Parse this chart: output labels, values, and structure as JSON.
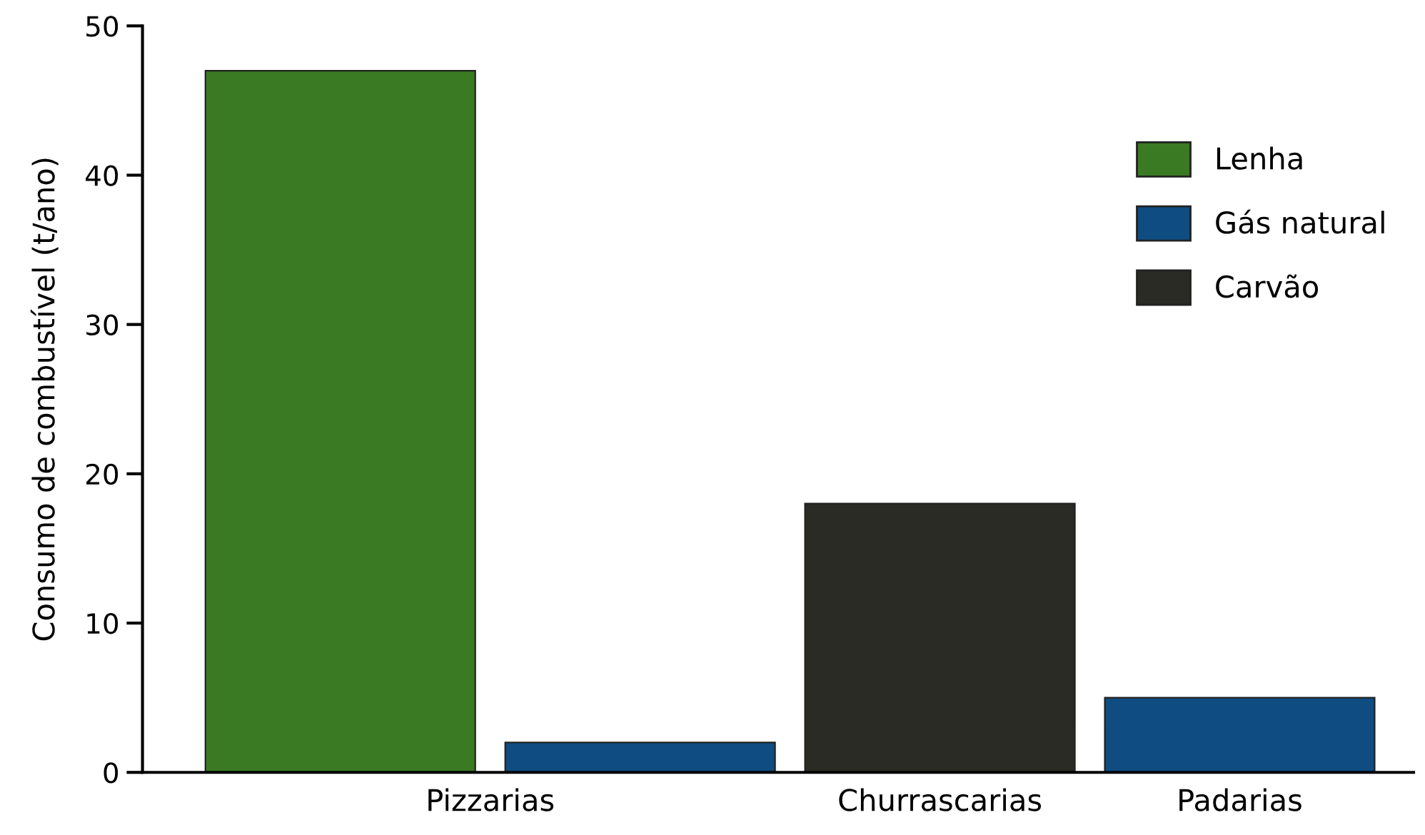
{
  "chart_data": {
    "type": "bar",
    "ylabel": "Consumo de combustível (t/ano)",
    "categories": [
      "Pizzarias",
      "Churrascarias",
      "Padarias"
    ],
    "series": [
      {
        "name": "Lenha",
        "color": "#3a7a22",
        "values": [
          47,
          null,
          null
        ]
      },
      {
        "name": "Gás natural",
        "color": "#0f4c81",
        "values": [
          2,
          null,
          5
        ]
      },
      {
        "name": "Carvão",
        "color": "#2b2b25",
        "values": [
          null,
          18,
          null
        ]
      }
    ],
    "ylim": [
      0,
      50
    ],
    "yticks": [
      0,
      10,
      20,
      30,
      40,
      50
    ],
    "grid": false,
    "legend": "top right"
  }
}
